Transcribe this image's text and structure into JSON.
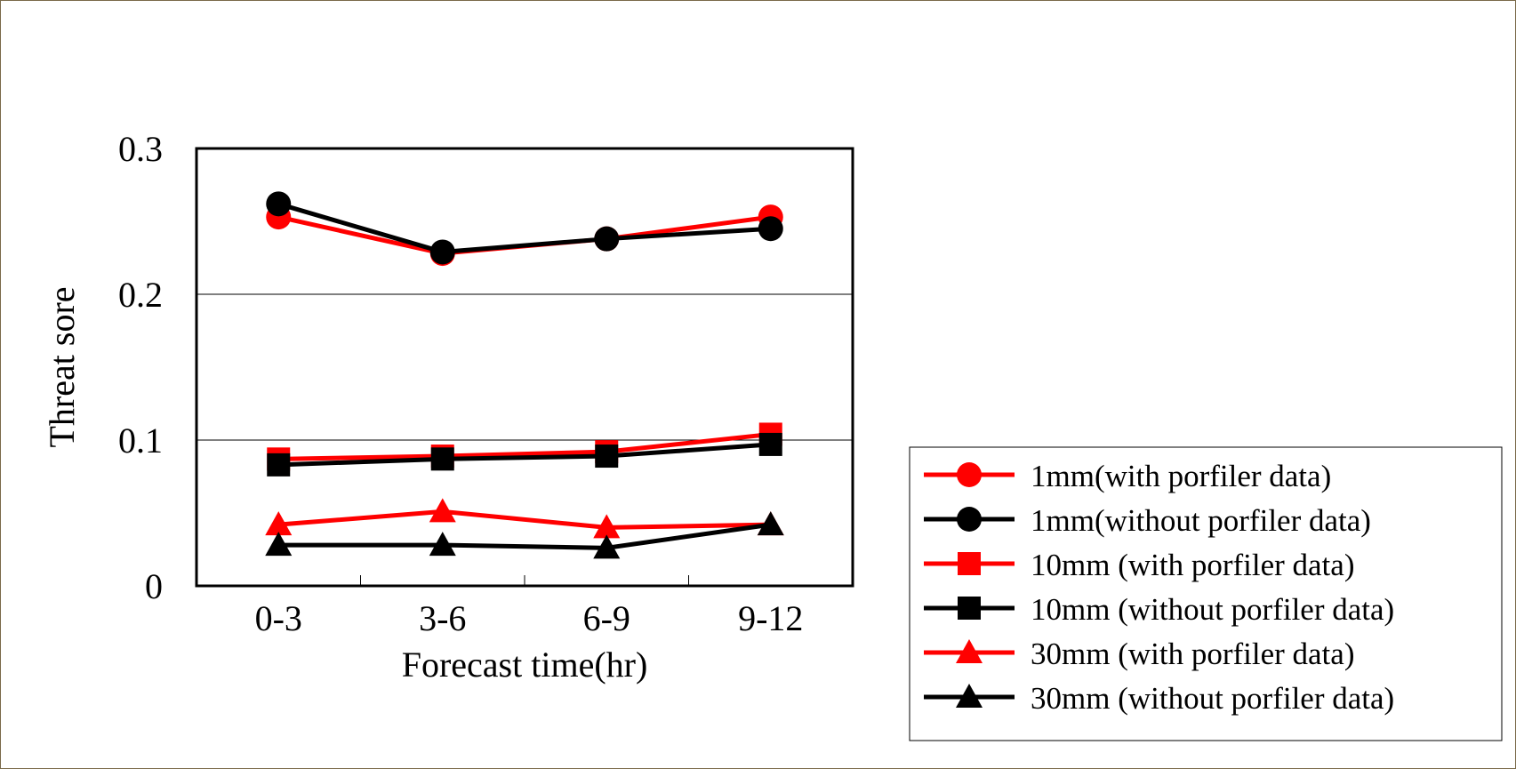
{
  "chart_data": {
    "type": "line",
    "title": "",
    "xlabel": "Forecast time(hr)",
    "ylabel": "Threat sore",
    "categories": [
      "0-3",
      "3-6",
      "6-9",
      "9-12"
    ],
    "ylim": [
      0,
      0.3
    ],
    "yticks": [
      "0",
      "0.1",
      "0.2",
      "0.3"
    ],
    "grid": "horizontal",
    "legend_position": "bottom-right",
    "series": [
      {
        "name": "1mm(with porfiler data)",
        "color": "#ff0000",
        "marker": "circle",
        "values": [
          0.253,
          0.228,
          0.238,
          0.253
        ]
      },
      {
        "name": "1mm(without porfiler data)",
        "color": "#000000",
        "marker": "circle",
        "values": [
          0.262,
          0.229,
          0.238,
          0.245
        ]
      },
      {
        "name": "10mm (with porfiler data)",
        "color": "#ff0000",
        "marker": "square",
        "values": [
          0.087,
          0.089,
          0.092,
          0.104
        ]
      },
      {
        "name": "10mm (without porfiler data)",
        "color": "#000000",
        "marker": "square",
        "values": [
          0.083,
          0.087,
          0.089,
          0.097
        ]
      },
      {
        "name": "30mm (with porfiler data)",
        "color": "#ff0000",
        "marker": "triangle",
        "values": [
          0.042,
          0.051,
          0.04,
          0.042
        ]
      },
      {
        "name": "30mm (without porfiler data)",
        "color": "#000000",
        "marker": "triangle",
        "values": [
          0.028,
          0.028,
          0.026,
          0.042
        ]
      }
    ]
  }
}
